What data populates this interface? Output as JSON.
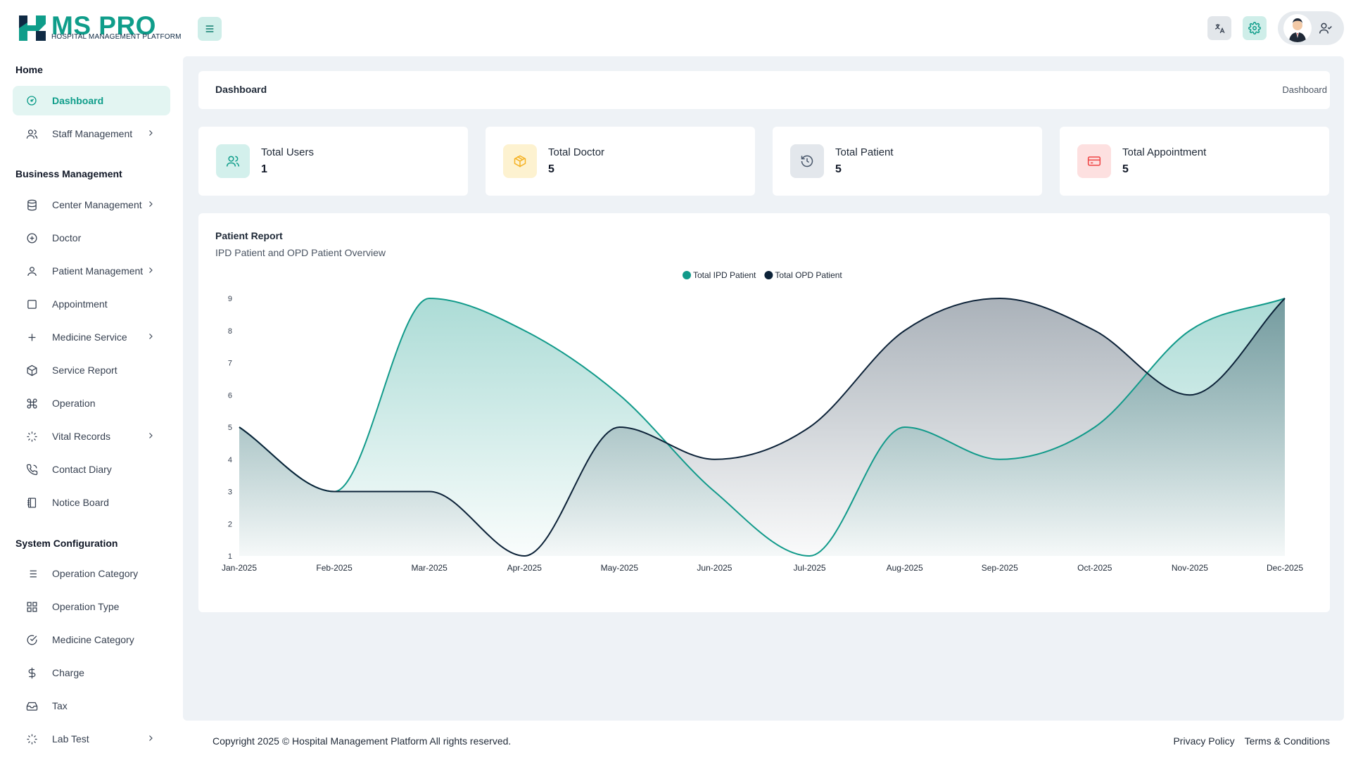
{
  "brand": {
    "name": "MS PRO",
    "subtitle": "HOSPITAL MANAGEMENT PLATFORM"
  },
  "sidebar": {
    "sections": [
      {
        "title": "Home"
      },
      {
        "title": "Business Management"
      },
      {
        "title": "System Configuration"
      }
    ],
    "items": [
      {
        "label": "Dashboard",
        "icon": "dashboard-icon"
      },
      {
        "label": "Staff Management",
        "icon": "users-icon"
      },
      {
        "label": "Center Management",
        "icon": "database-icon"
      },
      {
        "label": "Doctor",
        "icon": "plus-circle-icon"
      },
      {
        "label": "Patient Management",
        "icon": "user-icon"
      },
      {
        "label": "Appointment",
        "icon": "square-icon"
      },
      {
        "label": "Medicine Service",
        "icon": "plus-icon"
      },
      {
        "label": "Service Report",
        "icon": "codesandbox-icon"
      },
      {
        "label": "Operation",
        "icon": "command-icon"
      },
      {
        "label": "Vital Records",
        "icon": "loader-icon"
      },
      {
        "label": "Contact Diary",
        "icon": "phone-icon"
      },
      {
        "label": "Notice Board",
        "icon": "notebook-icon"
      },
      {
        "label": "Operation Category",
        "icon": "list-icon"
      },
      {
        "label": "Operation Type",
        "icon": "grid-icon"
      },
      {
        "label": "Medicine Category",
        "icon": "check-circle-icon"
      },
      {
        "label": "Charge",
        "icon": "dollar-icon"
      },
      {
        "label": "Tax",
        "icon": "inbox-icon"
      },
      {
        "label": "Lab Test",
        "icon": "loader-icon"
      }
    ]
  },
  "header": {
    "menu_icon": "hamburger-icon",
    "translate_icon": "translate-icon",
    "settings_icon": "gear-icon",
    "user_icon": "user-check-icon"
  },
  "breadcrumb": {
    "title": "Dashboard",
    "current": "Dashboard"
  },
  "stats": [
    {
      "label": "Total Users",
      "value": "1",
      "icon": "users-icon",
      "bg": "#d3f0ec",
      "fg": "#0f9d8a"
    },
    {
      "label": "Total Doctor",
      "value": "5",
      "icon": "box-icon",
      "bg": "#fdf2d0",
      "fg": "#f5b224"
    },
    {
      "label": "Total Patient",
      "value": "5",
      "icon": "history-icon",
      "bg": "#e3e7ec",
      "fg": "#475569"
    },
    {
      "label": "Total Appointment",
      "value": "5",
      "icon": "credit-card-icon",
      "bg": "#fde0e0",
      "fg": "#ef4444"
    }
  ],
  "chart": {
    "title": "Patient Report",
    "subtitle": "IPD Patient and OPD Patient Overview"
  },
  "chart_data": {
    "type": "area",
    "title": "Patient Report",
    "subtitle": "IPD Patient and OPD Patient Overview",
    "categories": [
      "Jan-2025",
      "Feb-2025",
      "Mar-2025",
      "Apr-2025",
      "May-2025",
      "Jun-2025",
      "Jul-2025",
      "Aug-2025",
      "Sep-2025",
      "Oct-2025",
      "Nov-2025",
      "Dec-2025"
    ],
    "series": [
      {
        "name": "Total IPD Patient",
        "color": "#119a8a",
        "values": [
          5,
          3,
          9,
          8,
          6,
          3,
          1,
          5,
          4,
          5,
          8,
          9
        ]
      },
      {
        "name": "Total OPD Patient",
        "color": "#0c2238",
        "values": [
          5,
          3,
          3,
          1,
          5,
          4,
          5,
          8,
          9,
          8,
          6,
          9
        ]
      }
    ],
    "ylim": [
      1,
      9
    ],
    "yticks": [
      1,
      2,
      3,
      4,
      5,
      6,
      7,
      8,
      9
    ],
    "legend": "top-center",
    "grid": false
  },
  "footer": {
    "copyright": "Copyright 2025 © Hospital Management Platform All rights reserved.",
    "links": [
      "Privacy Policy",
      "Terms & Conditions"
    ]
  }
}
